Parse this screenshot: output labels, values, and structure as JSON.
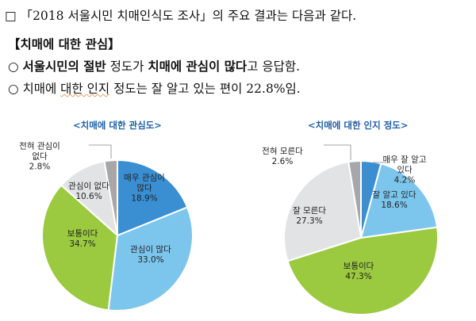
{
  "text": {
    "line1": "□ 「2018 서울시민 치매인식도 조사」의 주요 결과는 다음과 같다.",
    "heading": "【치매에 대한 관심】",
    "b1_bullet": "○ ",
    "b1_bold1": "서울시민의 절반",
    "b1_mid": " 정도가 ",
    "b1_bold2": "치매에 관심이 많다",
    "b1_end": "고 응답함.",
    "b2_bullet": "○ 치매에 ",
    "b2_underlined": "대한 인지",
    "b2_end": " 정도는 잘 알고 있는 편이 22.8%임."
  },
  "chart_data": [
    {
      "type": "pie",
      "title": "<치매에 대한 관심도>",
      "start": "12 o'clock clockwise",
      "slices": [
        {
          "label": "매우 관심이 많다",
          "value": 18.9,
          "text": "18.9%",
          "color": "#3a8fd3"
        },
        {
          "label": "관심이 많다",
          "value": 33.0,
          "text": "33.0%",
          "color": "#7cc6ee"
        },
        {
          "label": "보통이다",
          "value": 34.7,
          "text": "34.7%",
          "color": "#9bc93f"
        },
        {
          "label": "관심이 없다",
          "value": 10.6,
          "text": "10.6%",
          "color": "#e2e3e5"
        },
        {
          "label": "전혀 관심이 없다",
          "value": 2.8,
          "text": "2.8%",
          "color": "#a5a7aa"
        }
      ]
    },
    {
      "type": "pie",
      "title": "<치매에 대한 인지 정도>",
      "start": "12 o'clock clockwise",
      "slices": [
        {
          "label": "매우 잘 알고 있다",
          "value": 4.2,
          "text": "4.2%",
          "color": "#3a8fd3"
        },
        {
          "label": "잘 알고 있다",
          "value": 18.6,
          "text": "18.6%",
          "color": "#7cc6ee"
        },
        {
          "label": "보통이다",
          "value": 47.3,
          "text": "47.3%",
          "color": "#9bc93f"
        },
        {
          "label": "잘 모른다",
          "value": 27.3,
          "text": "27.3%",
          "color": "#e2e3e5"
        },
        {
          "label": "전혀 모른다",
          "value": 2.6,
          "text": "2.6%",
          "color": "#a5a7aa"
        }
      ]
    }
  ]
}
